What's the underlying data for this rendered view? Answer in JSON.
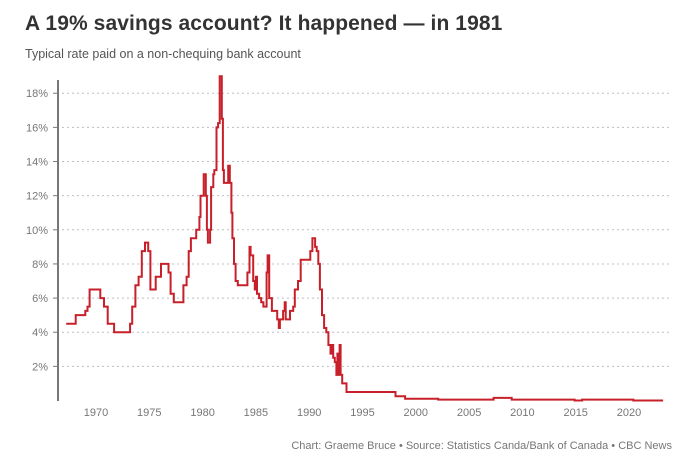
{
  "header": {
    "title": "A 19% savings account? It happened — in 1981",
    "subtitle": "Typical rate paid on a non-chequing bank account"
  },
  "footer": {
    "source": "Chart: Graeme Bruce • Source: Statistics Canda/Bank of Canada • CBC News"
  },
  "chart_data": {
    "type": "line",
    "title": "A 19% savings account? It happened — in 1981",
    "subtitle": "Typical rate paid on a non-chequing bank account",
    "xlabel": "",
    "ylabel": "",
    "xlim": [
      1966,
      2024
    ],
    "ylim": [
      0,
      19
    ],
    "grid": true,
    "line_color": "#c8202a",
    "step": true,
    "x_ticks": [
      1970,
      1975,
      1980,
      1985,
      1990,
      1995,
      2000,
      2005,
      2010,
      2015,
      2020
    ],
    "x_tick_labels": [
      "1970",
      "1975",
      "1980",
      "1985",
      "1990",
      "1995",
      "2000",
      "2005",
      "2010",
      "2015",
      "2020"
    ],
    "y_ticks": [
      2,
      4,
      6,
      8,
      10,
      12,
      14,
      16,
      18
    ],
    "y_tick_labels": [
      "2%",
      "4%",
      "6%",
      "8%",
      "10%",
      "12%",
      "14%",
      "16%",
      "18%"
    ],
    "series": [
      {
        "name": "Non-chequing savings rate (%)",
        "points": [
          [
            1967.2,
            4.5
          ],
          [
            1968.1,
            5.0
          ],
          [
            1969.0,
            5.25
          ],
          [
            1969.2,
            5.5
          ],
          [
            1969.4,
            6.5
          ],
          [
            1970.4,
            6.0
          ],
          [
            1970.75,
            5.5
          ],
          [
            1971.1,
            4.5
          ],
          [
            1971.7,
            4.0
          ],
          [
            1973.2,
            4.5
          ],
          [
            1973.4,
            5.5
          ],
          [
            1973.7,
            6.75
          ],
          [
            1974.0,
            7.25
          ],
          [
            1974.3,
            8.75
          ],
          [
            1974.6,
            9.25
          ],
          [
            1974.9,
            8.75
          ],
          [
            1975.1,
            6.5
          ],
          [
            1975.6,
            7.25
          ],
          [
            1976.1,
            8.0
          ],
          [
            1976.8,
            7.5
          ],
          [
            1977.0,
            6.25
          ],
          [
            1977.3,
            5.75
          ],
          [
            1978.2,
            6.75
          ],
          [
            1978.5,
            7.25
          ],
          [
            1978.7,
            8.75
          ],
          [
            1978.9,
            9.5
          ],
          [
            1979.4,
            10.0
          ],
          [
            1979.7,
            10.75
          ],
          [
            1979.8,
            12.0
          ],
          [
            1980.1,
            13.25
          ],
          [
            1980.3,
            12.0
          ],
          [
            1980.4,
            10.0
          ],
          [
            1980.5,
            9.25
          ],
          [
            1980.7,
            10.0
          ],
          [
            1980.8,
            12.5
          ],
          [
            1981.0,
            13.25
          ],
          [
            1981.1,
            13.5
          ],
          [
            1981.3,
            16.0
          ],
          [
            1981.45,
            16.25
          ],
          [
            1981.6,
            19.0
          ],
          [
            1981.8,
            16.5
          ],
          [
            1981.9,
            13.5
          ],
          [
            1982.0,
            12.75
          ],
          [
            1982.4,
            13.75
          ],
          [
            1982.55,
            12.75
          ],
          [
            1982.7,
            11.0
          ],
          [
            1982.8,
            9.5
          ],
          [
            1982.95,
            8.0
          ],
          [
            1983.1,
            7.0
          ],
          [
            1983.3,
            6.75
          ],
          [
            1984.2,
            7.5
          ],
          [
            1984.4,
            9.0
          ],
          [
            1984.5,
            8.5
          ],
          [
            1984.75,
            7.0
          ],
          [
            1984.9,
            6.5
          ],
          [
            1985.0,
            7.25
          ],
          [
            1985.1,
            6.25
          ],
          [
            1985.3,
            6.0
          ],
          [
            1985.5,
            5.75
          ],
          [
            1985.7,
            5.5
          ],
          [
            1986.0,
            7.5
          ],
          [
            1986.1,
            8.5
          ],
          [
            1986.25,
            6.0
          ],
          [
            1986.5,
            5.25
          ],
          [
            1987.0,
            4.75
          ],
          [
            1987.15,
            4.25
          ],
          [
            1987.25,
            4.75
          ],
          [
            1987.55,
            5.25
          ],
          [
            1987.7,
            5.75
          ],
          [
            1987.8,
            4.75
          ],
          [
            1988.2,
            5.25
          ],
          [
            1988.5,
            5.5
          ],
          [
            1988.65,
            6.5
          ],
          [
            1988.95,
            7.0
          ],
          [
            1989.2,
            8.25
          ],
          [
            1990.1,
            8.75
          ],
          [
            1990.3,
            9.5
          ],
          [
            1990.55,
            9.0
          ],
          [
            1990.7,
            8.75
          ],
          [
            1990.85,
            8.0
          ],
          [
            1991.0,
            6.5
          ],
          [
            1991.2,
            5.0
          ],
          [
            1991.4,
            4.25
          ],
          [
            1991.6,
            4.0
          ],
          [
            1991.8,
            3.25
          ],
          [
            1992.0,
            2.75
          ],
          [
            1992.1,
            3.25
          ],
          [
            1992.25,
            2.5
          ],
          [
            1992.4,
            2.25
          ],
          [
            1992.55,
            1.5
          ],
          [
            1992.65,
            2.75
          ],
          [
            1992.8,
            1.5
          ],
          [
            1992.85,
            3.25
          ],
          [
            1992.95,
            1.5
          ],
          [
            1993.1,
            1.0
          ],
          [
            1993.5,
            0.5
          ],
          [
            1998.1,
            0.25
          ],
          [
            1999.0,
            0.1
          ],
          [
            2002.1,
            0.05
          ],
          [
            2007.3,
            0.15
          ],
          [
            2009.0,
            0.05
          ],
          [
            2014.9,
            0.0
          ],
          [
            2015.6,
            0.05
          ],
          [
            2020.4,
            0.0
          ],
          [
            2023.2,
            0.0
          ]
        ]
      }
    ]
  }
}
